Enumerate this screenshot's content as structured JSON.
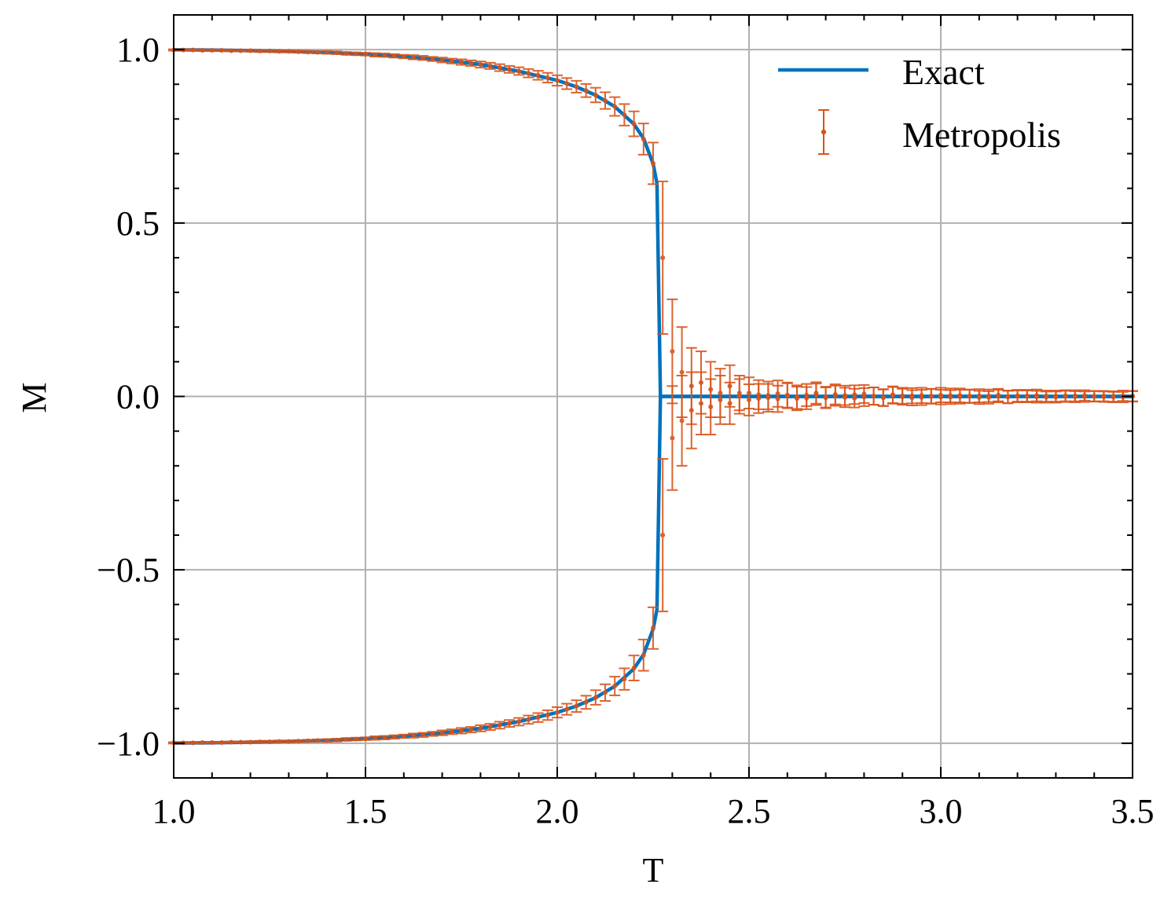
{
  "chart_data": {
    "type": "line",
    "title": "",
    "xlabel": "T",
    "ylabel": "M",
    "xlim": [
      1.0,
      3.5
    ],
    "ylim": [
      -1.1,
      1.1
    ],
    "xticks": [
      1.0,
      1.5,
      2.0,
      2.5,
      3.0,
      3.5
    ],
    "xtick_labels": [
      "1.0",
      "1.5",
      "2.0",
      "2.5",
      "3.0",
      "3.5"
    ],
    "yticks": [
      1.0,
      0.5,
      0.0,
      -0.5,
      -1.0
    ],
    "ytick_labels": [
      "1.0",
      "0.5",
      "0.0",
      "−0.5",
      "−1.0"
    ],
    "minor_tick_step_x": 0.1,
    "minor_tick_step_y": 0.1,
    "grid": true,
    "ticks_direction": "in",
    "legend_placement": "top-right",
    "colors": {
      "exact": "#0072BD",
      "metropolis": "#D95319",
      "grid": "#b0b0b0"
    },
    "series": [
      {
        "name": "Exact",
        "kind": "line",
        "symmetric_branches": true,
        "T": [
          1.0,
          1.1,
          1.2,
          1.3,
          1.4,
          1.5,
          1.6,
          1.7,
          1.8,
          1.9,
          2.0,
          2.05,
          2.1,
          2.15,
          2.2,
          2.225,
          2.25,
          2.26,
          2.269,
          2.27,
          3.5
        ],
        "M": [
          0.9993,
          0.9984,
          0.9971,
          0.9948,
          0.9916,
          0.9865,
          0.9796,
          0.9701,
          0.9573,
          0.9376,
          0.9113,
          0.8928,
          0.8687,
          0.8357,
          0.785,
          0.744,
          0.671,
          0.614,
          0,
          0,
          0
        ]
      },
      {
        "name": "Metropolis",
        "kind": "errorbar",
        "T": [
          1.0,
          1.025,
          1.05,
          1.075,
          1.1,
          1.125,
          1.15,
          1.175,
          1.2,
          1.225,
          1.25,
          1.275,
          1.3,
          1.325,
          1.35,
          1.375,
          1.4,
          1.425,
          1.45,
          1.475,
          1.5,
          1.525,
          1.55,
          1.575,
          1.6,
          1.625,
          1.65,
          1.675,
          1.7,
          1.725,
          1.75,
          1.775,
          1.8,
          1.825,
          1.85,
          1.875,
          1.9,
          1.925,
          1.95,
          1.975,
          2.0,
          2.025,
          2.05,
          2.075,
          2.1,
          2.125,
          2.15,
          2.175,
          2.2,
          2.225,
          2.25,
          2.275,
          2.3,
          2.325,
          2.35,
          2.375,
          2.4,
          2.425,
          2.45,
          2.475,
          2.5,
          2.525,
          2.55,
          2.575,
          2.6,
          2.625,
          2.65,
          2.675,
          2.7,
          2.725,
          2.75,
          2.775,
          2.8,
          2.825,
          2.85,
          2.875,
          2.9,
          2.925,
          2.95,
          2.975,
          3.0,
          3.025,
          3.05,
          3.075,
          3.1,
          3.125,
          3.15,
          3.175,
          3.2,
          3.225,
          3.25,
          3.275,
          3.3,
          3.325,
          3.35,
          3.375,
          3.4,
          3.425,
          3.45,
          3.475,
          3.5
        ],
        "M_upper": [
          0.999,
          0.999,
          0.999,
          0.998,
          0.998,
          0.998,
          0.997,
          0.997,
          0.997,
          0.996,
          0.996,
          0.995,
          0.995,
          0.994,
          0.993,
          0.992,
          0.992,
          0.991,
          0.989,
          0.988,
          0.987,
          0.985,
          0.984,
          0.982,
          0.98,
          0.978,
          0.976,
          0.973,
          0.97,
          0.967,
          0.964,
          0.961,
          0.957,
          0.953,
          0.948,
          0.943,
          0.938,
          0.932,
          0.926,
          0.919,
          0.911,
          0.902,
          0.893,
          0.882,
          0.869,
          0.853,
          0.836,
          0.812,
          0.786,
          0.742,
          0.672,
          0.4,
          0.13,
          0.07,
          0.03,
          0.04,
          0.02,
          -0.01,
          0.03,
          0.0,
          0.01,
          0.005,
          -0.004,
          0.008,
          0.002,
          -0.006,
          0.004,
          0.01,
          -0.002,
          0.006,
          0.003,
          -0.005,
          0.007,
          0.001,
          -0.003,
          0.005,
          0.002,
          -0.004,
          0.003,
          0.0,
          0.004,
          -0.002,
          0.003,
          0.001,
          -0.003,
          0.002,
          0.004,
          -0.001,
          0.002,
          0.0,
          0.003,
          -0.002,
          0.001,
          0.002,
          -0.001,
          0.003,
          0.0,
          0.001,
          -0.002,
          0.002,
          0.001
        ],
        "M_lower": [
          -0.999,
          -0.999,
          -0.999,
          -0.998,
          -0.998,
          -0.998,
          -0.997,
          -0.997,
          -0.997,
          -0.996,
          -0.996,
          -0.995,
          -0.995,
          -0.994,
          -0.993,
          -0.992,
          -0.992,
          -0.991,
          -0.989,
          -0.988,
          -0.987,
          -0.985,
          -0.984,
          -0.982,
          -0.98,
          -0.978,
          -0.976,
          -0.973,
          -0.97,
          -0.967,
          -0.964,
          -0.961,
          -0.957,
          -0.953,
          -0.948,
          -0.943,
          -0.938,
          -0.932,
          -0.926,
          -0.919,
          -0.911,
          -0.902,
          -0.893,
          -0.882,
          -0.868,
          -0.854,
          -0.835,
          -0.815,
          -0.783,
          -0.746,
          -0.668,
          -0.4,
          -0.12,
          -0.07,
          -0.04,
          -0.02,
          -0.03,
          0.01,
          -0.02,
          0.01,
          -0.01,
          -0.006,
          0.003,
          -0.007,
          0.004,
          -0.002,
          -0.005,
          0.006,
          -0.004,
          0.002,
          -0.003,
          0.005,
          -0.002,
          0.001,
          -0.004,
          0.003,
          -0.001,
          0.002,
          -0.003,
          0.001,
          -0.002,
          0.003,
          -0.001,
          0.0,
          0.002,
          -0.003,
          0.001,
          -0.002,
          0.0,
          0.002,
          -0.001,
          0.001,
          -0.002,
          0.0,
          0.002,
          -0.001,
          0.001,
          -0.001,
          0.0,
          -0.002,
          0.0
        ],
        "err": [
          0.002,
          0.002,
          0.002,
          0.002,
          0.002,
          0.002,
          0.002,
          0.002,
          0.003,
          0.003,
          0.003,
          0.003,
          0.003,
          0.003,
          0.003,
          0.003,
          0.004,
          0.004,
          0.004,
          0.004,
          0.004,
          0.005,
          0.005,
          0.005,
          0.005,
          0.006,
          0.006,
          0.006,
          0.007,
          0.007,
          0.008,
          0.008,
          0.009,
          0.009,
          0.01,
          0.01,
          0.011,
          0.012,
          0.013,
          0.014,
          0.015,
          0.016,
          0.017,
          0.019,
          0.021,
          0.024,
          0.027,
          0.031,
          0.036,
          0.045,
          0.06,
          0.22,
          0.15,
          0.13,
          0.11,
          0.09,
          0.08,
          0.07,
          0.06,
          0.05,
          0.045,
          0.042,
          0.04,
          0.038,
          0.036,
          0.034,
          0.032,
          0.031,
          0.03,
          0.029,
          0.028,
          0.027,
          0.026,
          0.025,
          0.024,
          0.024,
          0.023,
          0.022,
          0.022,
          0.021,
          0.021,
          0.02,
          0.02,
          0.019,
          0.019,
          0.018,
          0.018,
          0.018,
          0.017,
          0.017,
          0.017,
          0.016,
          0.016,
          0.016,
          0.016,
          0.015,
          0.015,
          0.015,
          0.015,
          0.015,
          0.015
        ]
      }
    ]
  }
}
